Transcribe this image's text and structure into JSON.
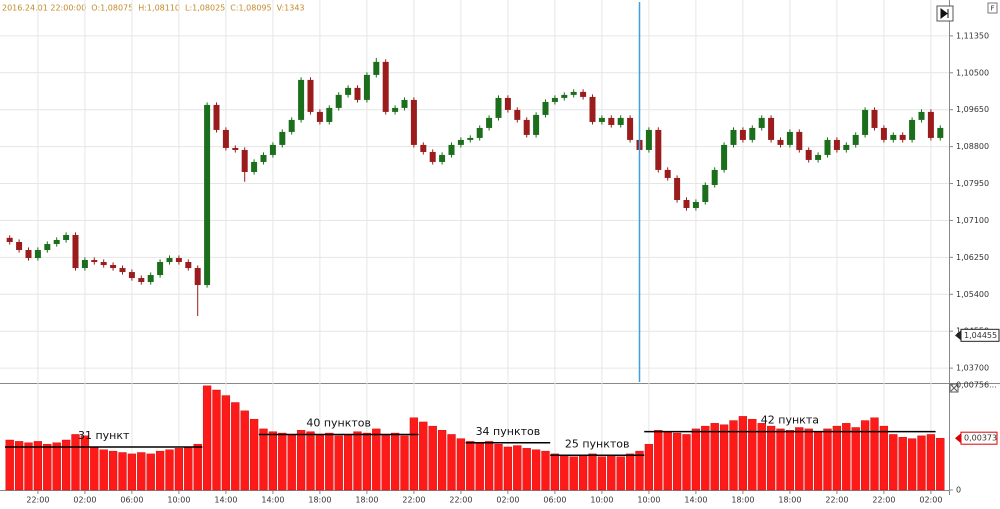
{
  "header": {
    "items": [
      "2016.24.01 22:00:00",
      "O:1,08075",
      "H:1,08110",
      "L:1,08025",
      "C:1,08095",
      "V:1343"
    ]
  },
  "chart_data": [
    {
      "type": "candlestick",
      "ylim": [
        1.0338,
        1.1213
      ],
      "yticks": [
        {
          "value": 1.1135,
          "label": "1,11350"
        },
        {
          "value": 1.105,
          "label": "1,10500"
        },
        {
          "value": 1.0965,
          "label": "1,09650"
        },
        {
          "value": 1.088,
          "label": "1,08800"
        },
        {
          "value": 1.0795,
          "label": "1,07950"
        },
        {
          "value": 1.071,
          "label": "1,07100"
        },
        {
          "value": 1.0625,
          "label": "1,06250"
        },
        {
          "value": 1.054,
          "label": "1,05400"
        },
        {
          "value": 1.0455,
          "label": "1,04550"
        },
        {
          "value": 1.037,
          "label": "1,03700"
        }
      ],
      "grid": true,
      "up_color": "#1b6e1b",
      "down_color": "#9b1c1c",
      "cursor": {
        "index": 67,
        "color": "#3fa0d8",
        "price": {
          "value": 1.04455,
          "label": "1,04455"
        }
      },
      "open": [
        1.067,
        1.06604,
        1.06419,
        1.06235,
        1.06419,
        1.06557,
        1.0665,
        1.06765,
        1.06004,
        1.06189,
        1.06143,
        1.06074,
        1.06004,
        1.05912,
        1.05774,
        1.05682,
        1.05843,
        1.06143,
        1.06235,
        1.06143,
        1.06004,
        1.05613,
        1.0976,
        1.09184,
        1.08769,
        1.08723,
        1.08216,
        1.08447,
        1.08608,
        1.08839,
        1.09138,
        1.09415,
        1.10336,
        1.09599,
        1.09368,
        1.09691,
        1.09991,
        1.10152,
        1.09875,
        1.10451,
        1.10751,
        1.09599,
        1.09691,
        1.09875,
        1.08839,
        1.08677,
        1.08447,
        1.08608,
        1.08839,
        1.08954,
        1.09,
        1.0923,
        1.09461,
        1.09921,
        1.09645,
        1.09415,
        1.09069,
        1.0953,
        1.09829,
        1.09921,
        1.09991,
        1.1006,
        1.09944,
        1.09368,
        1.09461,
        1.09299,
        1.09461,
        1.08954,
        1.08723,
        1.09184,
        1.08263,
        1.08078,
        1.07571,
        1.07387,
        1.07525,
        1.07917,
        1.08263,
        1.08839,
        1.09184,
        1.08954,
        1.0923,
        1.09461,
        1.08954,
        1.08839,
        1.09138,
        1.08723,
        1.08493,
        1.08608,
        1.08954,
        1.08723,
        1.08839,
        1.09069,
        1.09645,
        1.0923,
        1.08954,
        1.09069,
        1.08954,
        1.09415,
        1.09599,
        1.09
      ],
      "high": [
        1.0676,
        1.06664,
        1.06479,
        1.06479,
        1.06617,
        1.0671,
        1.06825,
        1.06825,
        1.06249,
        1.06249,
        1.06203,
        1.06134,
        1.06064,
        1.05972,
        1.05834,
        1.05903,
        1.06203,
        1.06295,
        1.06295,
        1.06203,
        1.06064,
        1.0982,
        1.0982,
        1.09244,
        1.08829,
        1.08783,
        1.08507,
        1.08668,
        1.08899,
        1.09198,
        1.09475,
        1.10396,
        1.10396,
        1.09659,
        1.09751,
        1.10051,
        1.10212,
        1.10212,
        1.10511,
        1.10843,
        1.10811,
        1.09751,
        1.09935,
        1.09935,
        1.08899,
        1.08737,
        1.08668,
        1.08899,
        1.09014,
        1.0906,
        1.0929,
        1.09521,
        1.09981,
        1.09981,
        1.09705,
        1.09475,
        1.0959,
        1.09889,
        1.09981,
        1.10051,
        1.1012,
        1.1012,
        1.10004,
        1.09521,
        1.09521,
        1.09521,
        1.09521,
        1.09014,
        1.09244,
        1.09244,
        1.08323,
        1.08138,
        1.07631,
        1.07585,
        1.07977,
        1.08323,
        1.08899,
        1.09244,
        1.09244,
        1.0929,
        1.09521,
        1.09521,
        1.09014,
        1.09198,
        1.09198,
        1.08783,
        1.08668,
        1.09014,
        1.09014,
        1.08899,
        1.09129,
        1.09705,
        1.09705,
        1.0929,
        1.09129,
        1.09129,
        1.09475,
        1.09659,
        1.09659,
        1.0929
      ],
      "low": [
        1.06544,
        1.06359,
        1.06175,
        1.06175,
        1.06359,
        1.06497,
        1.0659,
        1.05944,
        1.05944,
        1.06083,
        1.06014,
        1.05944,
        1.05852,
        1.05714,
        1.05622,
        1.05622,
        1.05783,
        1.06083,
        1.06083,
        1.05944,
        1.049,
        1.05553,
        1.09124,
        1.08709,
        1.08663,
        1.0799,
        1.08156,
        1.08387,
        1.08548,
        1.08779,
        1.09078,
        1.09355,
        1.09539,
        1.09308,
        1.09308,
        1.09631,
        1.09931,
        1.09815,
        1.09815,
        1.10391,
        1.09539,
        1.09539,
        1.09631,
        1.08779,
        1.08617,
        1.08387,
        1.08387,
        1.08548,
        1.08779,
        1.08894,
        1.0894,
        1.0917,
        1.09401,
        1.09585,
        1.09355,
        1.09009,
        1.09009,
        1.0947,
        1.09769,
        1.09861,
        1.09931,
        1.09884,
        1.09308,
        1.09308,
        1.09239,
        1.09239,
        1.08894,
        1.08663,
        1.08663,
        1.08203,
        1.08018,
        1.07511,
        1.07327,
        1.07327,
        1.07465,
        1.07857,
        1.08203,
        1.08779,
        1.08894,
        1.08894,
        1.0917,
        1.08894,
        1.08779,
        1.08779,
        1.08663,
        1.08433,
        1.08433,
        1.08548,
        1.08663,
        1.08663,
        1.08779,
        1.09009,
        1.0917,
        1.08894,
        1.08894,
        1.08894,
        1.08894,
        1.09355,
        1.0894,
        1.0894
      ],
      "close": [
        1.06604,
        1.06419,
        1.06235,
        1.06419,
        1.06557,
        1.0665,
        1.06765,
        1.06004,
        1.06189,
        1.06143,
        1.06074,
        1.06004,
        1.05912,
        1.05774,
        1.05682,
        1.05843,
        1.06143,
        1.06235,
        1.06143,
        1.06004,
        1.05613,
        1.0976,
        1.09184,
        1.08769,
        1.08723,
        1.08216,
        1.08447,
        1.08608,
        1.08839,
        1.09138,
        1.09415,
        1.10336,
        1.09599,
        1.09368,
        1.09691,
        1.09991,
        1.10152,
        1.09875,
        1.10451,
        1.10751,
        1.09599,
        1.09691,
        1.09875,
        1.08839,
        1.08677,
        1.08447,
        1.08608,
        1.08839,
        1.08954,
        1.09,
        1.0923,
        1.09461,
        1.09921,
        1.09645,
        1.09415,
        1.09069,
        1.0953,
        1.09829,
        1.09921,
        1.09991,
        1.1006,
        1.09944,
        1.09368,
        1.09461,
        1.09299,
        1.09461,
        1.08954,
        1.08723,
        1.09184,
        1.08263,
        1.08078,
        1.07571,
        1.07387,
        1.07525,
        1.07917,
        1.08263,
        1.08839,
        1.09184,
        1.08954,
        1.0923,
        1.09461,
        1.08954,
        1.08839,
        1.09138,
        1.08723,
        1.08493,
        1.08608,
        1.08954,
        1.08723,
        1.08839,
        1.09069,
        1.09645,
        1.0923,
        1.08954,
        1.09069,
        1.08954,
        1.09415,
        1.09599,
        1.09,
        1.0923
      ]
    },
    {
      "type": "bar",
      "color": "#ff1a1a",
      "ylim": [
        0,
        0.00756
      ],
      "yticks": [
        {
          "value": 0.00756,
          "label": "0,00756..."
        },
        0
      ],
      "current": {
        "value": 0.00373,
        "label": "0,00373"
      },
      "categories": [
        null,
        null,
        null,
        "22:00",
        null,
        null,
        null,
        null,
        "02:00",
        null,
        null,
        null,
        null,
        "06:00",
        null,
        null,
        null,
        null,
        "10:00",
        null,
        null,
        null,
        null,
        "14:00",
        null,
        null,
        null,
        null,
        "14:00",
        null,
        null,
        null,
        null,
        "18:00",
        null,
        null,
        null,
        null,
        "18:00",
        null,
        null,
        null,
        null,
        "22:00",
        null,
        null,
        null,
        null,
        "22:00",
        null,
        null,
        null,
        null,
        "02:00",
        null,
        null,
        null,
        null,
        "06:00",
        null,
        null,
        null,
        null,
        "10:00",
        null,
        null,
        null,
        null,
        "10:00",
        null,
        null,
        null,
        null,
        "14:00",
        null,
        null,
        null,
        null,
        "18:00",
        null,
        null,
        null,
        null,
        "18:00",
        null,
        null,
        null,
        null,
        "22:00",
        null,
        null,
        null,
        null,
        "22:00",
        null,
        null,
        null,
        null,
        "02:00",
        null
      ],
      "values": [
        0.0036,
        0.0035,
        0.0034,
        0.0035,
        0.0033,
        0.0034,
        0.0036,
        0.004,
        0.0039,
        0.0031,
        0.0029,
        0.0028,
        0.0027,
        0.0026,
        0.0027,
        0.0026,
        0.0028,
        0.0029,
        0.003,
        0.0031,
        0.0033,
        0.0075,
        0.0072,
        0.0068,
        0.0063,
        0.0057,
        0.0051,
        0.0044,
        0.0042,
        0.0041,
        0.004,
        0.0043,
        0.0042,
        0.004,
        0.0041,
        0.0039,
        0.004,
        0.0042,
        0.0041,
        0.0044,
        0.004,
        0.0041,
        0.0039,
        0.0052,
        0.0049,
        0.0046,
        0.0043,
        0.004,
        0.0037,
        0.0035,
        0.0034,
        0.0035,
        0.0033,
        0.0031,
        0.0032,
        0.003,
        0.0029,
        0.0028,
        0.0026,
        0.0025,
        0.0024,
        0.0025,
        0.0026,
        0.0024,
        0.0025,
        0.0024,
        0.0026,
        0.0028,
        0.0033,
        0.0043,
        0.0042,
        0.0041,
        0.004,
        0.0044,
        0.0046,
        0.0048,
        0.0047,
        0.005,
        0.0053,
        0.0051,
        0.0048,
        0.0046,
        0.0044,
        0.0043,
        0.0045,
        0.0044,
        0.0042,
        0.0044,
        0.0046,
        0.0048,
        0.0045,
        0.005,
        0.0052,
        0.0046,
        0.004,
        0.0038,
        0.0037,
        0.0039,
        0.004,
        0.00373
      ],
      "annotations": [
        {
          "label": "31 пункт",
          "value": 0.0031,
          "from": 0,
          "to": 20
        },
        {
          "label": "40 пунктов",
          "value": 0.004,
          "from": 27,
          "to": 43
        },
        {
          "label": "34 пунктов",
          "value": 0.0034,
          "from": 49,
          "to": 57
        },
        {
          "label": "25 пунктов",
          "value": 0.0025,
          "from": 58,
          "to": 67
        },
        {
          "label": "42 пункта",
          "value": 0.0042,
          "from": 68,
          "to": 98
        }
      ]
    }
  ]
}
